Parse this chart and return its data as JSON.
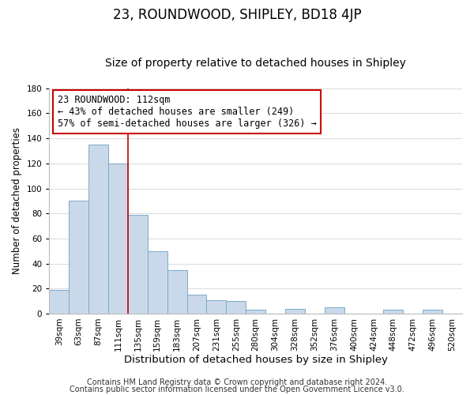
{
  "title": "23, ROUNDWOOD, SHIPLEY, BD18 4JP",
  "subtitle": "Size of property relative to detached houses in Shipley",
  "xlabel": "Distribution of detached houses by size in Shipley",
  "ylabel": "Number of detached properties",
  "bar_labels": [
    "39sqm",
    "63sqm",
    "87sqm",
    "111sqm",
    "135sqm",
    "159sqm",
    "183sqm",
    "207sqm",
    "231sqm",
    "255sqm",
    "280sqm",
    "304sqm",
    "328sqm",
    "352sqm",
    "376sqm",
    "400sqm",
    "424sqm",
    "448sqm",
    "472sqm",
    "496sqm",
    "520sqm"
  ],
  "bar_values": [
    19,
    90,
    135,
    120,
    79,
    50,
    35,
    15,
    11,
    10,
    3,
    0,
    4,
    0,
    5,
    0,
    0,
    3,
    0,
    3,
    0
  ],
  "bar_color": "#c9d9ea",
  "bar_edge_color": "#7aaac8",
  "ylim": [
    0,
    180
  ],
  "yticks": [
    0,
    20,
    40,
    60,
    80,
    100,
    120,
    140,
    160,
    180
  ],
  "property_line_index": 3,
  "property_line_color": "#cc0000",
  "annotation_line1": "23 ROUNDWOOD: 112sqm",
  "annotation_line2": "← 43% of detached houses are smaller (249)",
  "annotation_line3": "57% of semi-detached houses are larger (326) →",
  "annotation_box_color": "#ffffff",
  "annotation_box_edge": "#cc0000",
  "footer_line1": "Contains HM Land Registry data © Crown copyright and database right 2024.",
  "footer_line2": "Contains public sector information licensed under the Open Government Licence v3.0.",
  "background_color": "#ffffff",
  "plot_bg_color": "#ffffff",
  "grid_color": "#dddddd",
  "title_fontsize": 12,
  "subtitle_fontsize": 10,
  "xlabel_fontsize": 9.5,
  "ylabel_fontsize": 8.5,
  "tick_fontsize": 7.5,
  "annotation_fontsize": 8.5,
  "footer_fontsize": 7
}
